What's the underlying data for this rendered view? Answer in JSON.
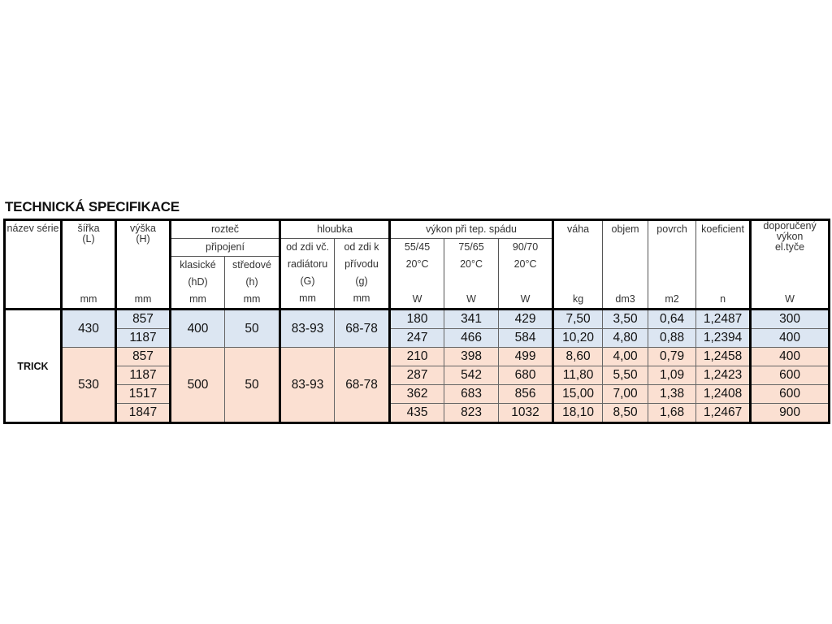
{
  "title": "TECHNICKÁ SPECIFIKACE",
  "header": {
    "nazev": "název série",
    "sirka": "šířka",
    "sirka_sym": "(L)",
    "sirka_unit": "mm",
    "vyska": "výška",
    "vyska_sym": "(H)",
    "vyska_unit": "mm",
    "roztec": "rozteč",
    "pripojeni": "připojení",
    "klasicke": "klasické",
    "klasicke_sym": "(hD)",
    "klasicke_unit": "mm",
    "stredove": "středové",
    "stredove_sym": "(h)",
    "stredove_unit": "mm",
    "hloubka": "hloubka",
    "hl1_a": "od zdi  vč.",
    "hl1_b": "radiátoru",
    "hl1_sym": "(G)",
    "hl1_unit": "mm",
    "hl2_a": "od zdi  k",
    "hl2_b": "přívodu",
    "hl2_sym": "(g)",
    "hl2_unit": "mm",
    "vykon": "výkon při tep.  spádu",
    "v1": "55/45",
    "v2": "75/65",
    "v3": "90/70",
    "vt": "20°C",
    "vunit": "W",
    "vaha": "váha",
    "vaha_unit": "kg",
    "objem": "objem",
    "objem_unit": "dm3",
    "povrch": "povrch",
    "povrch_unit": "m2",
    "koef": "koeficient",
    "koef_unit": "n",
    "dop": "doporučený výkon el.tyče",
    "dop_unit": "W"
  },
  "series_name": "TRICK",
  "groups": [
    {
      "sirka": "430",
      "roztec_klasicke": "400",
      "roztec_stredove": "50",
      "hloubka_G": "83-93",
      "hloubka_g": "68-78",
      "color": "#dce6f2",
      "rows": [
        {
          "vyska": "857",
          "w55": "180",
          "w75": "341",
          "w90": "429",
          "vaha": "7,50",
          "objem": "3,50",
          "povrch": "0,64",
          "koef": "1,2487",
          "dop": "300"
        },
        {
          "vyska": "1187",
          "w55": "247",
          "w75": "466",
          "w90": "584",
          "vaha": "10,20",
          "objem": "4,80",
          "povrch": "0,88",
          "koef": "1,2394",
          "dop": "400"
        }
      ]
    },
    {
      "sirka": "530",
      "roztec_klasicke": "500",
      "roztec_stredove": "50",
      "hloubka_G": "83-93",
      "hloubka_g": "68-78",
      "color": "#fbe0d2",
      "rows": [
        {
          "vyska": "857",
          "w55": "210",
          "w75": "398",
          "w90": "499",
          "vaha": "8,60",
          "objem": "4,00",
          "povrch": "0,79",
          "koef": "1,2458",
          "dop": "400"
        },
        {
          "vyska": "1187",
          "w55": "287",
          "w75": "542",
          "w90": "680",
          "vaha": "11,80",
          "objem": "5,50",
          "povrch": "1,09",
          "koef": "1,2423",
          "dop": "600"
        },
        {
          "vyska": "1517",
          "w55": "362",
          "w75": "683",
          "w90": "856",
          "vaha": "15,00",
          "objem": "7,00",
          "povrch": "1,38",
          "koef": "1,2408",
          "dop": "600"
        },
        {
          "vyska": "1847",
          "w55": "435",
          "w75": "823",
          "w90": "1032",
          "vaha": "18,10",
          "objem": "8,50",
          "povrch": "1,68",
          "koef": "1,2467",
          "dop": "900"
        }
      ]
    }
  ]
}
